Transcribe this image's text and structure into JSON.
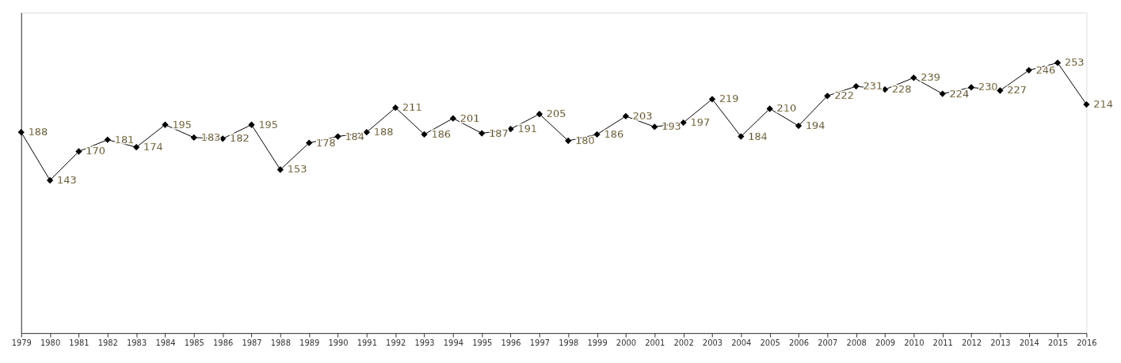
{
  "chart_data": {
    "type": "line",
    "categories": [
      "1979",
      "1980",
      "1981",
      "1982",
      "1983",
      "1984",
      "1985",
      "1986",
      "1987",
      "1988",
      "1989",
      "1990",
      "1991",
      "1992",
      "1993",
      "1994",
      "1995",
      "1996",
      "1997",
      "1998",
      "1999",
      "2000",
      "2001",
      "2002",
      "2003",
      "2004",
      "2005",
      "2006",
      "2007",
      "2008",
      "2009",
      "2010",
      "2011",
      "2012",
      "2013",
      "2014",
      "2015",
      "2016"
    ],
    "series": [
      {
        "color": "#000000",
        "values": [
          188,
          143,
          170,
          181,
          174,
          195,
          183,
          182,
          195,
          153,
          178,
          184,
          188,
          211,
          186,
          201,
          187,
          191,
          205,
          180,
          186,
          203,
          193,
          197,
          219,
          184,
          210,
          194,
          222,
          231,
          228,
          239,
          224,
          230,
          227,
          246,
          253,
          214
        ]
      }
    ],
    "ylim": [
      0,
      300
    ],
    "tick_labels": "x",
    "data_labels": true,
    "marker": "diamond",
    "line_style": "solid",
    "grid": false,
    "legend": false
  }
}
